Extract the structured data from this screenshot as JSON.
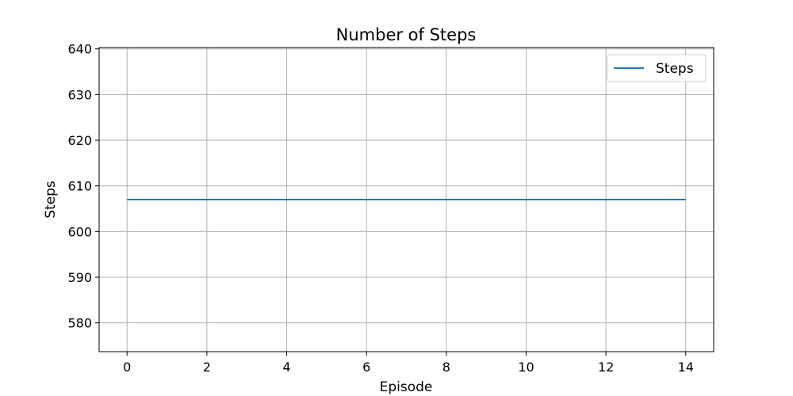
{
  "chart_data": {
    "type": "line",
    "title": "Number of Steps",
    "xlabel": "Episode",
    "ylabel": "Steps",
    "x": [
      0,
      1,
      2,
      3,
      4,
      5,
      6,
      7,
      8,
      9,
      10,
      11,
      12,
      13,
      14
    ],
    "series": [
      {
        "name": "Steps",
        "color": "#1f77b4",
        "values": [
          607,
          607,
          607,
          607,
          607,
          607,
          607,
          607,
          607,
          607,
          607,
          607,
          607,
          607,
          607
        ]
      }
    ],
    "xlim": [
      -0.7,
      14.7
    ],
    "ylim": [
      573.7,
      640.3
    ],
    "xticks": [
      0,
      2,
      4,
      6,
      8,
      10,
      12,
      14
    ],
    "yticks": [
      580,
      590,
      600,
      610,
      620,
      630,
      640
    ],
    "xtick_labels": [
      "0",
      "2",
      "4",
      "6",
      "8",
      "10",
      "12",
      "14"
    ],
    "ytick_labels": [
      "580",
      "590",
      "600",
      "610",
      "620",
      "630",
      "640"
    ],
    "grid": true,
    "legend_position": "top-right"
  }
}
